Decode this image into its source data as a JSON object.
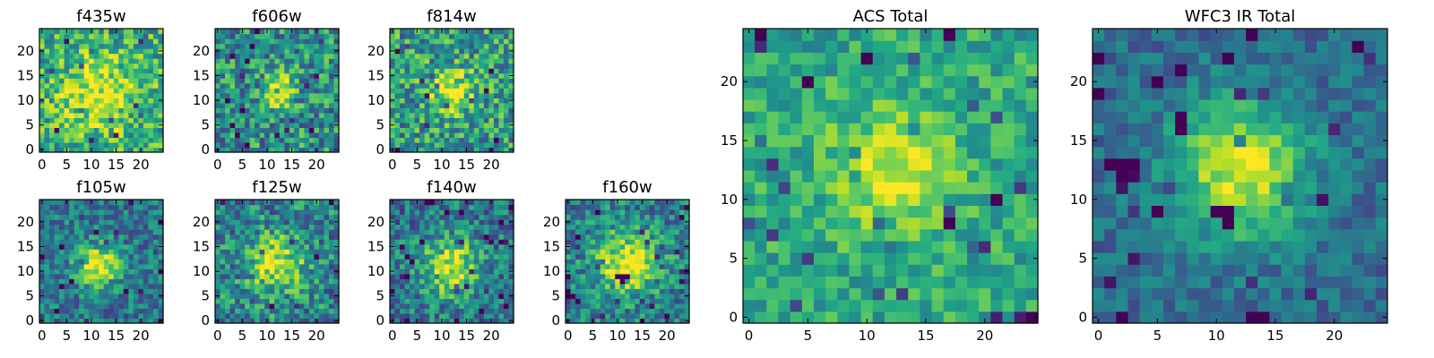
{
  "figure": {
    "colormap": "viridis"
  },
  "chart_data": [
    {
      "type": "heatmap",
      "title": "f435w",
      "grid_size": 25,
      "xticks": [
        0,
        5,
        10,
        15,
        20
      ],
      "yticks": [
        0,
        5,
        10,
        15,
        20
      ],
      "blob": {
        "x": 11.5,
        "y": 11.5,
        "sigma": 5,
        "amp": 0.35
      },
      "base": 0.62,
      "noise": 0.28,
      "seed": 11,
      "dark_pixels": []
    },
    {
      "type": "heatmap",
      "title": "f606w",
      "grid_size": 25,
      "xticks": [
        0,
        5,
        10,
        15,
        20
      ],
      "yticks": [
        0,
        5,
        10,
        15,
        20
      ],
      "blob": {
        "x": 12,
        "y": 12,
        "sigma": 2.5,
        "amp": 0.45
      },
      "base": 0.5,
      "noise": 0.3,
      "seed": 23,
      "dark_pixels": []
    },
    {
      "type": "heatmap",
      "title": "f814w",
      "grid_size": 25,
      "xticks": [
        0,
        5,
        10,
        15,
        20
      ],
      "yticks": [
        0,
        5,
        10,
        15,
        20
      ],
      "blob": {
        "x": 12,
        "y": 12,
        "sigma": 3,
        "amp": 0.45
      },
      "base": 0.55,
      "noise": 0.3,
      "seed": 37,
      "dark_pixels": []
    },
    {
      "type": "heatmap",
      "title": "f105w",
      "grid_size": 25,
      "xticks": [
        0,
        5,
        10,
        15,
        20
      ],
      "yticks": [
        0,
        5,
        10,
        15,
        20
      ],
      "blob": {
        "x": 11.5,
        "y": 11,
        "sigma": 3,
        "amp": 0.6
      },
      "base": 0.4,
      "noise": 0.22,
      "seed": 41,
      "dark_pixels": []
    },
    {
      "type": "heatmap",
      "title": "f125w",
      "grid_size": 25,
      "xticks": [
        0,
        5,
        10,
        15,
        20
      ],
      "yticks": [
        0,
        5,
        10,
        15,
        20
      ],
      "blob": {
        "x": 12,
        "y": 11.5,
        "sigma": 4,
        "amp": 0.5
      },
      "base": 0.45,
      "noise": 0.28,
      "seed": 53,
      "dark_pixels": []
    },
    {
      "type": "heatmap",
      "title": "f140w",
      "grid_size": 25,
      "xticks": [
        0,
        5,
        10,
        15,
        20
      ],
      "yticks": [
        0,
        5,
        10,
        15,
        20
      ],
      "blob": {
        "x": 11.5,
        "y": 11,
        "sigma": 4,
        "amp": 0.55
      },
      "base": 0.4,
      "noise": 0.25,
      "seed": 67,
      "dark_pixels": []
    },
    {
      "type": "heatmap",
      "title": "f160w",
      "grid_size": 25,
      "xticks": [
        0,
        5,
        10,
        15,
        20
      ],
      "yticks": [
        0,
        5,
        10,
        15,
        20
      ],
      "blob": {
        "x": 12,
        "y": 12,
        "sigma": 4.5,
        "amp": 0.55
      },
      "base": 0.42,
      "noise": 0.25,
      "seed": 71,
      "dark_pixels": [
        [
          10,
          9
        ],
        [
          11,
          9
        ],
        [
          12,
          9
        ],
        [
          11,
          8
        ],
        [
          0,
          5
        ],
        [
          1,
          5
        ],
        [
          0,
          6
        ]
      ]
    },
    {
      "type": "heatmap",
      "title": "ACS Total",
      "grid_size": 25,
      "xticks": [
        0,
        5,
        10,
        15,
        20
      ],
      "yticks": [
        0,
        5,
        10,
        15,
        20
      ],
      "blob": {
        "x": 12,
        "y": 12.5,
        "sigma": 3.5,
        "amp": 0.35
      },
      "base": 0.6,
      "noise": 0.18,
      "seed": 83,
      "dark_pixels": [
        [
          1,
          24
        ],
        [
          10,
          22
        ],
        [
          5,
          20
        ],
        [
          17,
          8
        ],
        [
          24,
          0
        ],
        [
          21,
          10
        ],
        [
          17,
          24
        ]
      ]
    },
    {
      "type": "heatmap",
      "title": "WFC3 IR Total",
      "grid_size": 25,
      "xticks": [
        0,
        5,
        10,
        15,
        20
      ],
      "yticks": [
        0,
        5,
        10,
        15,
        20
      ],
      "blob": {
        "x": 12,
        "y": 12.5,
        "sigma": 4,
        "amp": 0.6
      },
      "base": 0.35,
      "noise": 0.14,
      "seed": 97,
      "dark_pixels": [
        [
          10,
          9
        ],
        [
          11,
          9
        ],
        [
          11,
          8
        ],
        [
          1,
          13
        ],
        [
          2,
          13
        ],
        [
          3,
          13
        ],
        [
          2,
          12
        ],
        [
          7,
          16
        ],
        [
          7,
          17
        ],
        [
          0,
          19
        ],
        [
          2,
          0
        ],
        [
          0,
          22
        ]
      ]
    }
  ]
}
